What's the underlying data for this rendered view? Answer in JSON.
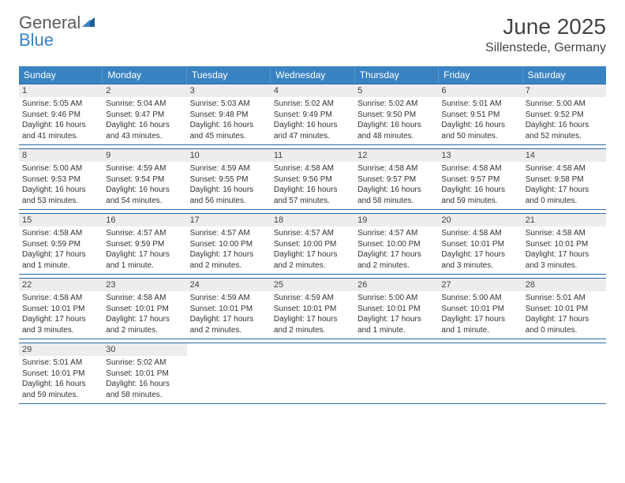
{
  "brand": {
    "name1": "General",
    "name2": "Blue"
  },
  "colors": {
    "header_bg": "#3983c3",
    "border": "#2b6aa3",
    "daynum_bg": "#ededed",
    "text": "#333333",
    "brand_gray": "#5a5a5a",
    "brand_blue": "#3b82c4"
  },
  "title": "June 2025",
  "location": "Sillenstede, Germany",
  "daysOfWeek": [
    "Sunday",
    "Monday",
    "Tuesday",
    "Wednesday",
    "Thursday",
    "Friday",
    "Saturday"
  ],
  "weeks": [
    [
      {
        "n": "1",
        "sr": "Sunrise: 5:05 AM",
        "ss": "Sunset: 9:46 PM",
        "dl": "Daylight: 16 hours and 41 minutes."
      },
      {
        "n": "2",
        "sr": "Sunrise: 5:04 AM",
        "ss": "Sunset: 9:47 PM",
        "dl": "Daylight: 16 hours and 43 minutes."
      },
      {
        "n": "3",
        "sr": "Sunrise: 5:03 AM",
        "ss": "Sunset: 9:48 PM",
        "dl": "Daylight: 16 hours and 45 minutes."
      },
      {
        "n": "4",
        "sr": "Sunrise: 5:02 AM",
        "ss": "Sunset: 9:49 PM",
        "dl": "Daylight: 16 hours and 47 minutes."
      },
      {
        "n": "5",
        "sr": "Sunrise: 5:02 AM",
        "ss": "Sunset: 9:50 PM",
        "dl": "Daylight: 16 hours and 48 minutes."
      },
      {
        "n": "6",
        "sr": "Sunrise: 5:01 AM",
        "ss": "Sunset: 9:51 PM",
        "dl": "Daylight: 16 hours and 50 minutes."
      },
      {
        "n": "7",
        "sr": "Sunrise: 5:00 AM",
        "ss": "Sunset: 9:52 PM",
        "dl": "Daylight: 16 hours and 52 minutes."
      }
    ],
    [
      {
        "n": "8",
        "sr": "Sunrise: 5:00 AM",
        "ss": "Sunset: 9:53 PM",
        "dl": "Daylight: 16 hours and 53 minutes."
      },
      {
        "n": "9",
        "sr": "Sunrise: 4:59 AM",
        "ss": "Sunset: 9:54 PM",
        "dl": "Daylight: 16 hours and 54 minutes."
      },
      {
        "n": "10",
        "sr": "Sunrise: 4:59 AM",
        "ss": "Sunset: 9:55 PM",
        "dl": "Daylight: 16 hours and 56 minutes."
      },
      {
        "n": "11",
        "sr": "Sunrise: 4:58 AM",
        "ss": "Sunset: 9:56 PM",
        "dl": "Daylight: 16 hours and 57 minutes."
      },
      {
        "n": "12",
        "sr": "Sunrise: 4:58 AM",
        "ss": "Sunset: 9:57 PM",
        "dl": "Daylight: 16 hours and 58 minutes."
      },
      {
        "n": "13",
        "sr": "Sunrise: 4:58 AM",
        "ss": "Sunset: 9:57 PM",
        "dl": "Daylight: 16 hours and 59 minutes."
      },
      {
        "n": "14",
        "sr": "Sunrise: 4:58 AM",
        "ss": "Sunset: 9:58 PM",
        "dl": "Daylight: 17 hours and 0 minutes."
      }
    ],
    [
      {
        "n": "15",
        "sr": "Sunrise: 4:58 AM",
        "ss": "Sunset: 9:59 PM",
        "dl": "Daylight: 17 hours and 1 minute."
      },
      {
        "n": "16",
        "sr": "Sunrise: 4:57 AM",
        "ss": "Sunset: 9:59 PM",
        "dl": "Daylight: 17 hours and 1 minute."
      },
      {
        "n": "17",
        "sr": "Sunrise: 4:57 AM",
        "ss": "Sunset: 10:00 PM",
        "dl": "Daylight: 17 hours and 2 minutes."
      },
      {
        "n": "18",
        "sr": "Sunrise: 4:57 AM",
        "ss": "Sunset: 10:00 PM",
        "dl": "Daylight: 17 hours and 2 minutes."
      },
      {
        "n": "19",
        "sr": "Sunrise: 4:57 AM",
        "ss": "Sunset: 10:00 PM",
        "dl": "Daylight: 17 hours and 2 minutes."
      },
      {
        "n": "20",
        "sr": "Sunrise: 4:58 AM",
        "ss": "Sunset: 10:01 PM",
        "dl": "Daylight: 17 hours and 3 minutes."
      },
      {
        "n": "21",
        "sr": "Sunrise: 4:58 AM",
        "ss": "Sunset: 10:01 PM",
        "dl": "Daylight: 17 hours and 3 minutes."
      }
    ],
    [
      {
        "n": "22",
        "sr": "Sunrise: 4:58 AM",
        "ss": "Sunset: 10:01 PM",
        "dl": "Daylight: 17 hours and 3 minutes."
      },
      {
        "n": "23",
        "sr": "Sunrise: 4:58 AM",
        "ss": "Sunset: 10:01 PM",
        "dl": "Daylight: 17 hours and 2 minutes."
      },
      {
        "n": "24",
        "sr": "Sunrise: 4:59 AM",
        "ss": "Sunset: 10:01 PM",
        "dl": "Daylight: 17 hours and 2 minutes."
      },
      {
        "n": "25",
        "sr": "Sunrise: 4:59 AM",
        "ss": "Sunset: 10:01 PM",
        "dl": "Daylight: 17 hours and 2 minutes."
      },
      {
        "n": "26",
        "sr": "Sunrise: 5:00 AM",
        "ss": "Sunset: 10:01 PM",
        "dl": "Daylight: 17 hours and 1 minute."
      },
      {
        "n": "27",
        "sr": "Sunrise: 5:00 AM",
        "ss": "Sunset: 10:01 PM",
        "dl": "Daylight: 17 hours and 1 minute."
      },
      {
        "n": "28",
        "sr": "Sunrise: 5:01 AM",
        "ss": "Sunset: 10:01 PM",
        "dl": "Daylight: 17 hours and 0 minutes."
      }
    ],
    [
      {
        "n": "29",
        "sr": "Sunrise: 5:01 AM",
        "ss": "Sunset: 10:01 PM",
        "dl": "Daylight: 16 hours and 59 minutes."
      },
      {
        "n": "30",
        "sr": "Sunrise: 5:02 AM",
        "ss": "Sunset: 10:01 PM",
        "dl": "Daylight: 16 hours and 58 minutes."
      },
      null,
      null,
      null,
      null,
      null
    ]
  ]
}
